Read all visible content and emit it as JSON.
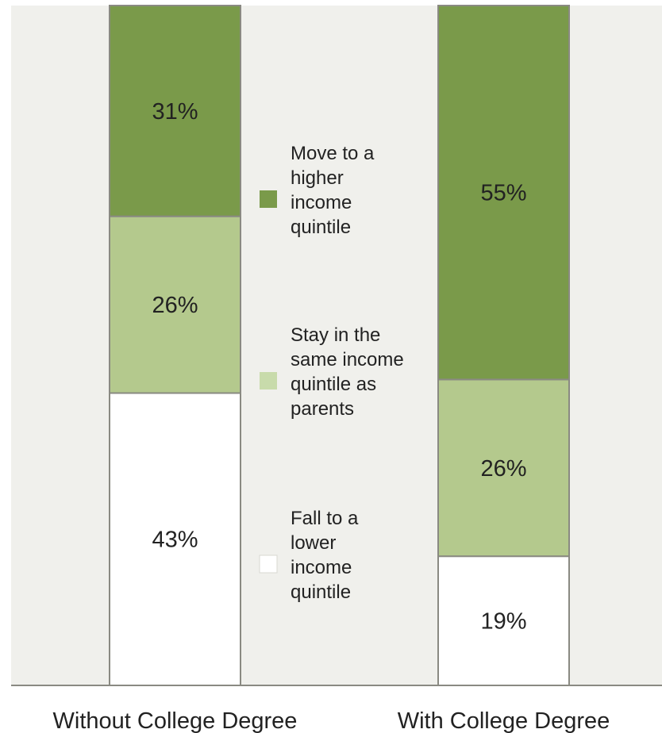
{
  "chart_data": {
    "type": "bar",
    "stacked": true,
    "categories": [
      "Without College Degree",
      "With College Degree"
    ],
    "series": [
      {
        "name": "Fall to a lower income quintile",
        "values": [
          43,
          19
        ],
        "labels": [
          "43%",
          "19%"
        ],
        "color": "#ffffff"
      },
      {
        "name": "Stay in the same income quintile as parents",
        "values": [
          26,
          26
        ],
        "labels": [
          "26%",
          "26%"
        ],
        "color": "#b4c98d"
      },
      {
        "name": "Move to a higher income quintile",
        "values": [
          31,
          55
        ],
        "labels": [
          "31%",
          "55%"
        ],
        "color": "#7a9a4a"
      }
    ],
    "legend": [
      {
        "lines": [
          "Move to a",
          "higher",
          "income",
          "quintile"
        ],
        "color": "#7a9a4a"
      },
      {
        "lines": [
          "Stay in the",
          "same income",
          "quintile as",
          "parents"
        ],
        "color": "#c8dbab"
      },
      {
        "lines": [
          "Fall to a",
          "lower",
          "income",
          "quintile"
        ],
        "color": "#ffffff"
      }
    ],
    "legend_position": "center",
    "ylim": [
      0,
      100
    ],
    "grid": false,
    "title": "",
    "xlabel": "",
    "ylabel": "",
    "background": "#f0f0ec",
    "border_color": "#8a8a82"
  }
}
